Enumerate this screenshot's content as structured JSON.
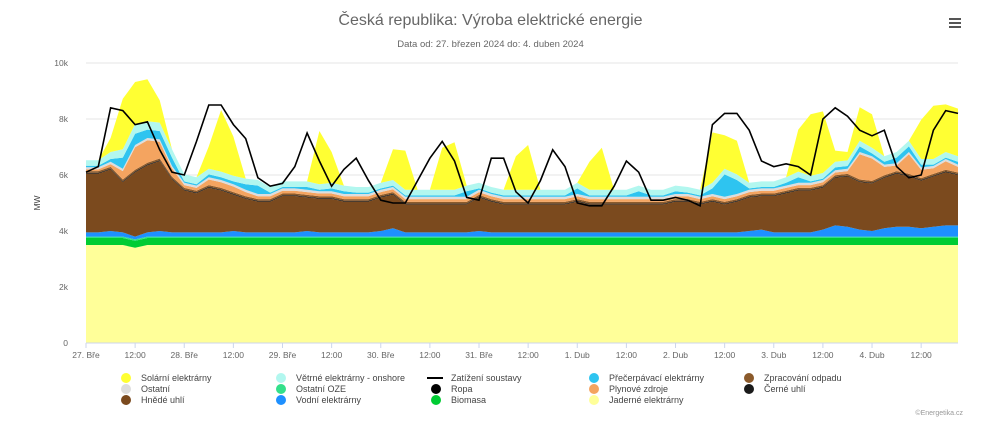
{
  "header": {
    "title": "Česká republika: Výroba elektrické energie",
    "subtitle": "Data od: 27. březen 2024 do: 4. duben 2024",
    "menu_icon": "hamburger-icon"
  },
  "credits": "©Energetika.cz",
  "chart_data": {
    "type": "area",
    "stacked": true,
    "ylabel": "MW",
    "ylim": [
      0,
      10000
    ],
    "yticks": [
      0,
      2000,
      4000,
      6000,
      8000,
      10000
    ],
    "ytick_labels": [
      "0",
      "2k",
      "4k",
      "6k",
      "8k",
      "10k"
    ],
    "x_hours": [
      0,
      3,
      6,
      9,
      12,
      15,
      18,
      21,
      24,
      27,
      30,
      33,
      36,
      39,
      42,
      45,
      48,
      51,
      54,
      57,
      60,
      63,
      66,
      69,
      72,
      75,
      78,
      81,
      84,
      87,
      90,
      93,
      96,
      99,
      102,
      105,
      108,
      111,
      114,
      117,
      120,
      123,
      126,
      129,
      132,
      135,
      138,
      141,
      144,
      147,
      150,
      153,
      156,
      159,
      162,
      165,
      168,
      171,
      174,
      177,
      180,
      183,
      186,
      189,
      192,
      195,
      198,
      201,
      204,
      207,
      210,
      213
    ],
    "x_axis": {
      "start": 0,
      "end": 213,
      "unit": "hours from 27.3.2024 00:00"
    },
    "xticks": [
      {
        "hour": 0,
        "label": "27. Bře"
      },
      {
        "hour": 12,
        "label": "12:00"
      },
      {
        "hour": 24,
        "label": "28. Bře"
      },
      {
        "hour": 36,
        "label": "12:00"
      },
      {
        "hour": 48,
        "label": "29. Bře"
      },
      {
        "hour": 60,
        "label": "12:00"
      },
      {
        "hour": 72,
        "label": "30. Bře"
      },
      {
        "hour": 84,
        "label": "12:00"
      },
      {
        "hour": 96,
        "label": "31. Bře"
      },
      {
        "hour": 108,
        "label": "12:00"
      },
      {
        "hour": 120,
        "label": "1. Dub"
      },
      {
        "hour": 132,
        "label": "12:00"
      },
      {
        "hour": 144,
        "label": "2. Dub"
      },
      {
        "hour": 156,
        "label": "12:00"
      },
      {
        "hour": 168,
        "label": "3. Dub"
      },
      {
        "hour": 180,
        "label": "12:00"
      },
      {
        "hour": 192,
        "label": "4. Dub"
      },
      {
        "hour": 204,
        "label": "12:00"
      }
    ],
    "series": [
      {
        "name": "Jaderné elektrárny",
        "color": "#ffff99",
        "values": [
          3500,
          3500,
          3500,
          3500,
          3400,
          3500,
          3500,
          3500,
          3500,
          3500,
          3500,
          3500,
          3500,
          3500,
          3500,
          3500,
          3500,
          3500,
          3500,
          3500,
          3500,
          3500,
          3500,
          3500,
          3500,
          3500,
          3500,
          3500,
          3500,
          3500,
          3500,
          3500,
          3500,
          3500,
          3500,
          3500,
          3500,
          3500,
          3500,
          3500,
          3500,
          3500,
          3500,
          3500,
          3500,
          3500,
          3500,
          3500,
          3500,
          3500,
          3500,
          3500,
          3500,
          3500,
          3500,
          3500,
          3500,
          3500,
          3500,
          3500,
          3500,
          3500,
          3500,
          3500,
          3500,
          3500,
          3500,
          3500,
          3500,
          3500,
          3500,
          3500
        ]
      },
      {
        "name": "Biomasa",
        "color": "#00cc33",
        "values": [
          250,
          250,
          250,
          250,
          250,
          250,
          250,
          250,
          250,
          250,
          250,
          250,
          250,
          250,
          250,
          250,
          250,
          250,
          250,
          250,
          250,
          250,
          250,
          250,
          250,
          250,
          250,
          250,
          250,
          250,
          250,
          250,
          250,
          250,
          250,
          250,
          250,
          250,
          250,
          250,
          250,
          250,
          250,
          250,
          250,
          250,
          250,
          250,
          250,
          250,
          250,
          250,
          250,
          250,
          250,
          250,
          250,
          250,
          250,
          250,
          250,
          250,
          250,
          250,
          250,
          250,
          250,
          250,
          250,
          250,
          250,
          250
        ]
      },
      {
        "name": "Ostatní OZE",
        "color": "#33e08a",
        "values": [
          50,
          50,
          50,
          50,
          50,
          50,
          50,
          50,
          50,
          50,
          50,
          50,
          50,
          50,
          50,
          50,
          50,
          50,
          50,
          50,
          50,
          50,
          50,
          50,
          50,
          50,
          50,
          50,
          50,
          50,
          50,
          50,
          50,
          50,
          50,
          50,
          50,
          50,
          50,
          50,
          50,
          50,
          50,
          50,
          50,
          50,
          50,
          50,
          50,
          50,
          50,
          50,
          50,
          50,
          50,
          50,
          50,
          50,
          50,
          50,
          50,
          50,
          50,
          50,
          50,
          50,
          50,
          50,
          50,
          50,
          50,
          50
        ]
      },
      {
        "name": "Vodní elektrárny",
        "color": "#1e90ff",
        "values": [
          150,
          150,
          200,
          150,
          100,
          150,
          200,
          150,
          150,
          150,
          150,
          150,
          200,
          150,
          150,
          150,
          150,
          150,
          200,
          150,
          150,
          150,
          150,
          150,
          200,
          300,
          150,
          150,
          150,
          150,
          150,
          150,
          200,
          150,
          150,
          150,
          150,
          150,
          150,
          150,
          150,
          150,
          150,
          150,
          150,
          150,
          150,
          150,
          150,
          150,
          150,
          150,
          150,
          150,
          200,
          250,
          150,
          150,
          150,
          150,
          250,
          400,
          350,
          250,
          200,
          300,
          350,
          350,
          300,
          350,
          400,
          400
        ]
      },
      {
        "name": "Hnědé uhlí",
        "color": "#7b4a1e",
        "values": [
          2100,
          2100,
          2200,
          1800,
          2300,
          2400,
          2500,
          1900,
          1500,
          1400,
          1600,
          1500,
          1300,
          1200,
          1100,
          1100,
          1300,
          1300,
          1200,
          1200,
          1200,
          1100,
          1100,
          1100,
          1200,
          1200,
          1000,
          1000,
          1000,
          1000,
          1000,
          1000,
          1200,
          1100,
          1000,
          1000,
          1000,
          1000,
          1000,
          1000,
          1100,
          1000,
          1000,
          1000,
          1000,
          1000,
          1000,
          1000,
          1100,
          1100,
          1000,
          1100,
          1000,
          1100,
          1200,
          1200,
          1300,
          1400,
          1500,
          1500,
          1500,
          1700,
          1800,
          1700,
          1700,
          1800,
          1900,
          1800,
          1700,
          1800,
          1900,
          1800
        ]
      },
      {
        "name": "Černé uhlí",
        "color": "#1a1a1a",
        "values": [
          30,
          30,
          30,
          30,
          30,
          30,
          30,
          30,
          30,
          30,
          30,
          30,
          30,
          30,
          30,
          30,
          30,
          30,
          30,
          30,
          30,
          30,
          30,
          30,
          30,
          30,
          30,
          30,
          30,
          30,
          30,
          30,
          30,
          30,
          30,
          30,
          30,
          30,
          30,
          30,
          30,
          30,
          30,
          30,
          30,
          30,
          30,
          30,
          30,
          30,
          30,
          30,
          30,
          30,
          30,
          30,
          30,
          30,
          30,
          30,
          30,
          30,
          30,
          30,
          30,
          30,
          30,
          30,
          30,
          30,
          30,
          30
        ]
      },
      {
        "name": "Zpracování odpadu",
        "color": "#8b5a2b",
        "values": [
          60,
          60,
          60,
          60,
          60,
          60,
          60,
          60,
          60,
          60,
          60,
          60,
          60,
          60,
          60,
          60,
          60,
          60,
          60,
          60,
          60,
          60,
          60,
          60,
          60,
          60,
          60,
          60,
          60,
          60,
          60,
          60,
          60,
          60,
          60,
          60,
          60,
          60,
          60,
          60,
          60,
          60,
          60,
          60,
          60,
          60,
          60,
          60,
          60,
          60,
          60,
          60,
          60,
          60,
          60,
          60,
          60,
          60,
          60,
          60,
          60,
          60,
          60,
          60,
          60,
          60,
          60,
          60,
          60,
          60,
          60,
          60
        ]
      },
      {
        "name": "Plynové zdroje",
        "color": "#f4a460",
        "values": [
          60,
          60,
          100,
          300,
          800,
          800,
          600,
          300,
          100,
          100,
          200,
          200,
          200,
          150,
          100,
          100,
          100,
          100,
          100,
          100,
          100,
          100,
          100,
          100,
          100,
          100,
          100,
          100,
          100,
          100,
          100,
          100,
          100,
          100,
          100,
          100,
          100,
          100,
          100,
          100,
          100,
          100,
          100,
          100,
          100,
          100,
          100,
          100,
          100,
          100,
          100,
          100,
          100,
          100,
          100,
          100,
          100,
          100,
          100,
          100,
          100,
          100,
          100,
          900,
          800,
          300,
          200,
          700,
          300,
          200,
          300,
          200
        ]
      },
      {
        "name": "Ostatní",
        "color": "#dddddd",
        "values": [
          80,
          80,
          80,
          80,
          80,
          80,
          80,
          80,
          80,
          80,
          80,
          80,
          80,
          80,
          80,
          80,
          80,
          80,
          80,
          80,
          80,
          80,
          80,
          80,
          80,
          80,
          80,
          80,
          80,
          80,
          80,
          80,
          80,
          80,
          80,
          80,
          80,
          80,
          80,
          80,
          80,
          80,
          80,
          80,
          80,
          80,
          80,
          80,
          80,
          80,
          80,
          80,
          80,
          80,
          80,
          80,
          80,
          80,
          80,
          80,
          80,
          80,
          80,
          80,
          80,
          80,
          80,
          80,
          80,
          80,
          80,
          80
        ]
      },
      {
        "name": "Přečerpávací elektrárny",
        "color": "#2ec4f0",
        "values": [
          50,
          50,
          100,
          400,
          400,
          300,
          300,
          300,
          50,
          50,
          100,
          100,
          100,
          200,
          300,
          50,
          50,
          50,
          100,
          50,
          100,
          100,
          50,
          50,
          50,
          50,
          50,
          50,
          50,
          50,
          50,
          200,
          50,
          50,
          50,
          50,
          50,
          50,
          50,
          50,
          200,
          50,
          50,
          50,
          50,
          200,
          50,
          50,
          100,
          50,
          50,
          200,
          800,
          500,
          50,
          50,
          50,
          100,
          200,
          50,
          50,
          100,
          100,
          200,
          100,
          100,
          200,
          200,
          100,
          50,
          50,
          100
        ]
      },
      {
        "name": "Větrné elektrárny - onshore",
        "color": "#b2f7ef",
        "values": [
          200,
          200,
          250,
          300,
          350,
          300,
          300,
          300,
          250,
          250,
          200,
          200,
          200,
          200,
          200,
          200,
          200,
          200,
          200,
          200,
          200,
          200,
          200,
          200,
          200,
          200,
          200,
          200,
          200,
          200,
          200,
          200,
          200,
          200,
          200,
          200,
          200,
          200,
          200,
          200,
          200,
          200,
          200,
          200,
          200,
          200,
          200,
          200,
          200,
          200,
          200,
          200,
          200,
          200,
          200,
          200,
          200,
          200,
          200,
          200,
          200,
          200,
          200,
          200,
          200,
          200,
          200,
          200,
          200,
          200,
          200,
          200
        ]
      },
      {
        "name": "Solární elektrárny",
        "color": "#ffff33",
        "values": [
          0,
          0,
          500,
          1800,
          1500,
          1500,
          800,
          0,
          0,
          0,
          800,
          2200,
          1400,
          0,
          0,
          0,
          0,
          0,
          0,
          1900,
          1100,
          0,
          0,
          0,
          0,
          1100,
          1400,
          0,
          0,
          1500,
          1700,
          0,
          0,
          0,
          0,
          1200,
          1600,
          0,
          0,
          0,
          0,
          1000,
          1500,
          0,
          0,
          0,
          0,
          0,
          0,
          0,
          0,
          1800,
          1200,
          1200,
          0,
          0,
          0,
          0,
          1500,
          2200,
          2200,
          400,
          300,
          1200,
          1200,
          0,
          0,
          0,
          1400,
          1900,
          1700,
          1700
        ]
      }
    ],
    "load_line": {
      "name": "Zatížení soustavy",
      "color": "#000000",
      "values": [
        6100,
        6300,
        8400,
        8300,
        7800,
        7900,
        6900,
        6100,
        6000,
        7200,
        8500,
        8500,
        7800,
        7300,
        5900,
        5600,
        5700,
        6300,
        7500,
        6500,
        5600,
        6200,
        6600,
        5800,
        5100,
        5000,
        5000,
        5800,
        6600,
        7200,
        6500,
        5200,
        5100,
        6600,
        6600,
        5400,
        5000,
        5800,
        6900,
        6300,
        5000,
        4900,
        4900,
        5600,
        6500,
        6100,
        5100,
        5100,
        5200,
        5100,
        4900,
        7800,
        8200,
        8200,
        7600,
        6500,
        6300,
        6400,
        6300,
        6000,
        8000,
        8400,
        8100,
        7600,
        7400,
        7600,
        6300,
        5900,
        6000,
        7600,
        8300,
        8200
      ]
    },
    "legend": [
      "Solární elektrárny",
      "Větrné elektrárny - onshore",
      "Zatížení soustavy",
      "Přečerpávací elektrárny",
      "Zpracování odpadu",
      "Ostatní",
      "Ostatní OZE",
      "Ropa",
      "Plynové zdroje",
      "Černé uhlí",
      "Hnědé uhlí",
      "Vodní elektrárny",
      "Biomasa",
      "Jaderné elektrárny"
    ],
    "legend_colors": {
      "Solární elektrárny": "#ffff33",
      "Větrné elektrárny - onshore": "#b2f7ef",
      "Zatížení soustavy": "#000000",
      "Přečerpávací elektrárny": "#2ec4f0",
      "Zpracování odpadu": "#8b5a2b",
      "Ostatní": "#dddddd",
      "Ostatní OZE": "#33e08a",
      "Ropa": "#000000",
      "Plynové zdroje": "#f4a460",
      "Černé uhlí": "#1a1a1a",
      "Hnědé uhlí": "#7b4a1e",
      "Vodní elektrárny": "#1e90ff",
      "Biomasa": "#00cc33",
      "Jaderné elektrárny": "#ffff99"
    }
  }
}
